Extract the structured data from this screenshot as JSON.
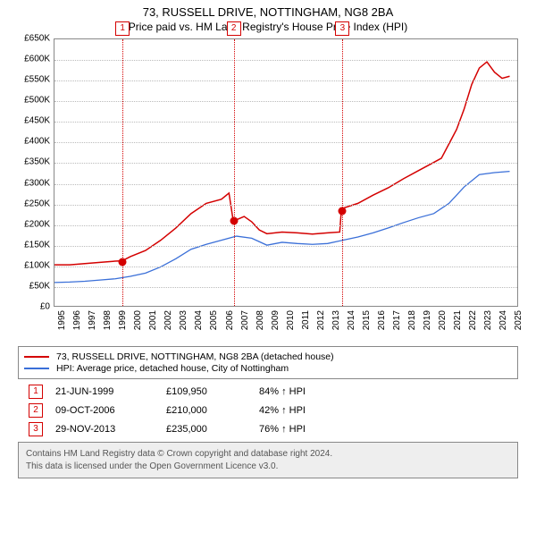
{
  "title": "73, RUSSELL DRIVE, NOTTINGHAM, NG8 2BA",
  "subtitle": "Price paid vs. HM Land Registry's House Price Index (HPI)",
  "chart": {
    "type": "line",
    "background_color": "#ffffff",
    "grid_color": "#bbbbbb",
    "border_color": "#888888",
    "font_size_axis": 10,
    "x": {
      "min": 1995,
      "max": 2025.5,
      "ticks": [
        1995,
        1996,
        1997,
        1998,
        1999,
        2000,
        2001,
        2002,
        2003,
        2004,
        2005,
        2006,
        2007,
        2008,
        2009,
        2010,
        2011,
        2012,
        2013,
        2014,
        2015,
        2016,
        2017,
        2018,
        2019,
        2020,
        2021,
        2022,
        2023,
        2024,
        2025
      ]
    },
    "y": {
      "min": 0,
      "max": 650000,
      "tick_step": 50000,
      "tick_prefix": "£",
      "tick_suffix": "K",
      "tick_divisor": 1000
    },
    "series": [
      {
        "id": "property",
        "label": "73, RUSSELL DRIVE, NOTTINGHAM, NG8 2BA (detached house)",
        "color": "#d40000",
        "line_width": 1.5,
        "points": [
          [
            1995,
            100000
          ],
          [
            1996,
            100000
          ],
          [
            1997,
            103000
          ],
          [
            1998,
            106000
          ],
          [
            1999,
            109000
          ],
          [
            1999.47,
            109950
          ],
          [
            2000,
            120000
          ],
          [
            2001,
            135000
          ],
          [
            2002,
            160000
          ],
          [
            2003,
            190000
          ],
          [
            2004,
            225000
          ],
          [
            2005,
            250000
          ],
          [
            2006,
            260000
          ],
          [
            2006.5,
            275000
          ],
          [
            2006.77,
            210000
          ],
          [
            2007,
            210000
          ],
          [
            2007.5,
            218000
          ],
          [
            2008,
            205000
          ],
          [
            2008.5,
            185000
          ],
          [
            2009,
            176000
          ],
          [
            2010,
            180000
          ],
          [
            2011,
            178000
          ],
          [
            2012,
            175000
          ],
          [
            2013,
            178000
          ],
          [
            2013.8,
            180000
          ],
          [
            2013.91,
            235000
          ],
          [
            2014,
            238000
          ],
          [
            2015,
            250000
          ],
          [
            2016,
            270000
          ],
          [
            2017,
            288000
          ],
          [
            2018,
            310000
          ],
          [
            2019,
            330000
          ],
          [
            2020,
            350000
          ],
          [
            2020.5,
            360000
          ],
          [
            2021,
            395000
          ],
          [
            2021.5,
            430000
          ],
          [
            2022,
            480000
          ],
          [
            2022.5,
            540000
          ],
          [
            2023,
            580000
          ],
          [
            2023.5,
            595000
          ],
          [
            2024,
            570000
          ],
          [
            2024.5,
            555000
          ],
          [
            2025,
            560000
          ]
        ]
      },
      {
        "id": "hpi",
        "label": "HPI: Average price, detached house, City of Nottingham",
        "color": "#3a6fd8",
        "line_width": 1.3,
        "points": [
          [
            1995,
            57000
          ],
          [
            1996,
            58000
          ],
          [
            1997,
            60000
          ],
          [
            1998,
            63000
          ],
          [
            1999,
            66000
          ],
          [
            2000,
            72000
          ],
          [
            2001,
            80000
          ],
          [
            2002,
            95000
          ],
          [
            2003,
            115000
          ],
          [
            2004,
            138000
          ],
          [
            2005,
            150000
          ],
          [
            2006,
            160000
          ],
          [
            2007,
            170000
          ],
          [
            2008,
            165000
          ],
          [
            2009,
            148000
          ],
          [
            2010,
            155000
          ],
          [
            2011,
            152000
          ],
          [
            2012,
            150000
          ],
          [
            2013,
            152000
          ],
          [
            2014,
            160000
          ],
          [
            2015,
            168000
          ],
          [
            2016,
            178000
          ],
          [
            2017,
            190000
          ],
          [
            2018,
            203000
          ],
          [
            2019,
            215000
          ],
          [
            2020,
            225000
          ],
          [
            2021,
            250000
          ],
          [
            2022,
            290000
          ],
          [
            2023,
            320000
          ],
          [
            2024,
            325000
          ],
          [
            2025,
            328000
          ]
        ]
      }
    ],
    "markers": [
      {
        "n": "1",
        "year": 1999.47,
        "value": 109950,
        "color": "#d40000"
      },
      {
        "n": "2",
        "year": 2006.77,
        "value": 210000,
        "color": "#d40000"
      },
      {
        "n": "3",
        "year": 2013.91,
        "value": 235000,
        "color": "#d40000"
      }
    ]
  },
  "legend": {
    "border_color": "#888888",
    "rows": [
      {
        "color": "#d40000",
        "label": "73, RUSSELL DRIVE, NOTTINGHAM, NG8 2BA (detached house)"
      },
      {
        "color": "#3a6fd8",
        "label": "HPI: Average price, detached house, City of Nottingham"
      }
    ]
  },
  "sales": [
    {
      "n": "1",
      "color": "#d40000",
      "date": "21-JUN-1999",
      "price": "£109,950",
      "pct": "84% ↑ HPI"
    },
    {
      "n": "2",
      "color": "#d40000",
      "date": "09-OCT-2006",
      "price": "£210,000",
      "pct": "42% ↑ HPI"
    },
    {
      "n": "3",
      "color": "#d40000",
      "date": "29-NOV-2013",
      "price": "£235,000",
      "pct": "76% ↑ HPI"
    }
  ],
  "footer": {
    "line1": "Contains HM Land Registry data © Crown copyright and database right 2024.",
    "line2": "This data is licensed under the Open Government Licence v3.0.",
    "background": "#eeeeee",
    "border_color": "#888888",
    "text_color": "#555555"
  }
}
